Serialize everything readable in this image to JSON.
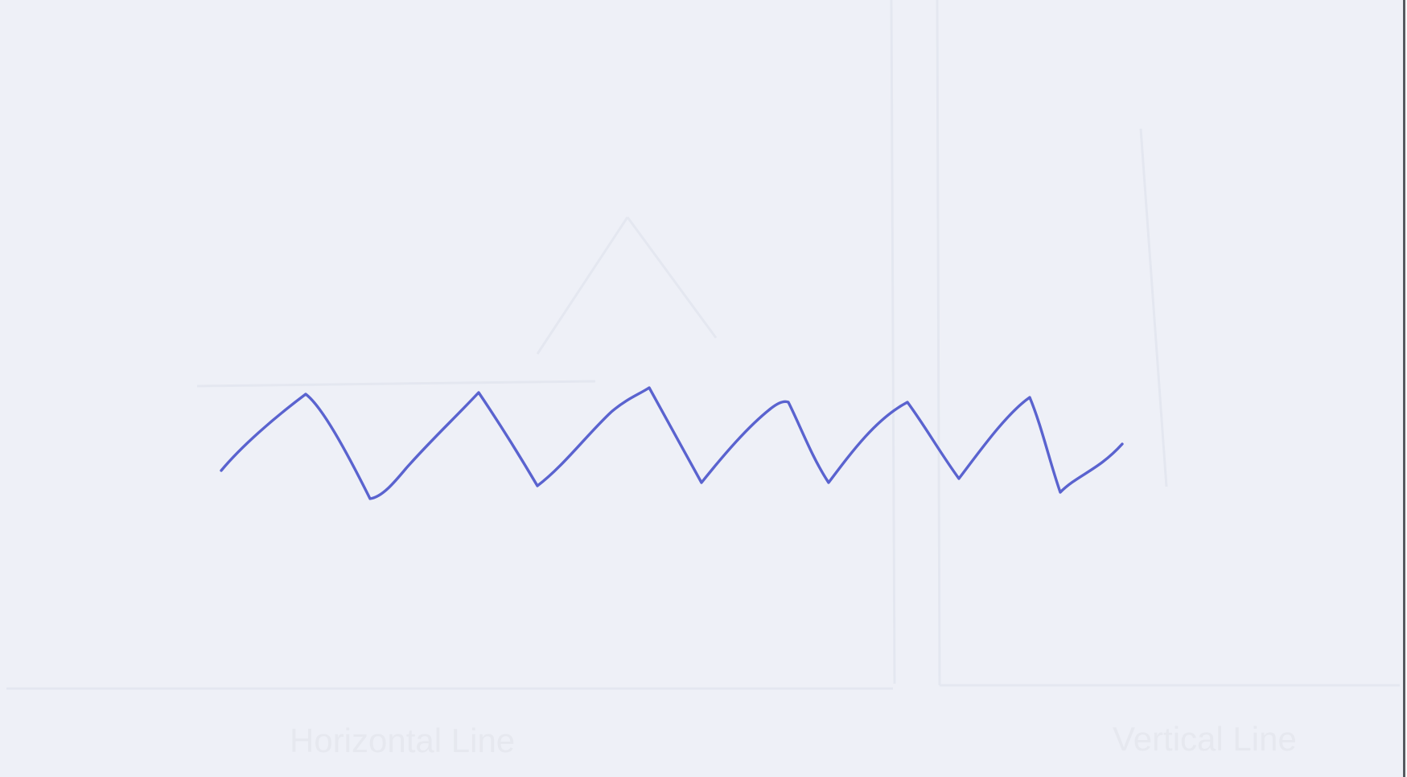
{
  "page": {
    "paper_color": "#eef0f7",
    "ink_color": "#5a63cf",
    "border_color": "#555a60"
  },
  "sheet": {
    "show_through_labels": [
      "Horizontal Line",
      "Vertical Line"
    ]
  },
  "drawing": {
    "stroke_icon": "hand-drawn-zigzag-line"
  }
}
